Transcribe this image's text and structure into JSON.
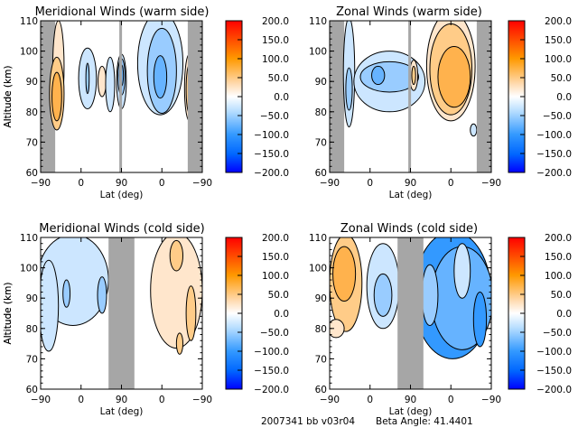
{
  "footer": {
    "run_id": "2007341 bb v03r04",
    "beta_label": "Beta Angle: 41.4401"
  },
  "colorbar": {
    "ticks": [
      "200.0",
      "150.0",
      "100.0",
      "50.0",
      "0.0",
      "−50.0",
      "−100.0",
      "−150.0",
      "−200.0"
    ],
    "range": [
      -200,
      200
    ],
    "colors": {
      "max": "#ff0000",
      "high": "#ff9900",
      "low_pos": "#ffe0c0",
      "zero": "#ffffff",
      "low_neg": "#bfe0ff",
      "mid_neg": "#3399ff",
      "min": "#0000ff"
    }
  },
  "colors": {
    "missing_gray": "#a6a6a6",
    "pos1": "#ffe6cc",
    "pos2": "#ffcc88",
    "pos3": "#ffb24d",
    "pos4": "#ff9a1a",
    "neg1": "#cce6ff",
    "neg2": "#99ccff",
    "neg3": "#66b3ff",
    "neg4": "#3399ff"
  },
  "chart_data": [
    {
      "type": "heatmap",
      "title": "Meridional Winds (warm side)",
      "xlabel": "Lat (deg)",
      "ylabel": "Altitude (km)",
      "xticks": [
        "−90",
        "0",
        "90",
        "0",
        "−90"
      ],
      "yticks": [
        "60",
        "70",
        "80",
        "90",
        "100",
        "110"
      ],
      "ylim": [
        60,
        110
      ],
      "zlim": [
        -200,
        200
      ],
      "features": [
        {
          "sign": "positive",
          "level": 2,
          "lat_range": "-90 to -75",
          "alt_range": [
            75,
            100
          ]
        },
        {
          "sign": "negative",
          "level": 1,
          "lat_range": "0 to 30",
          "alt_range": [
            83,
            103
          ]
        },
        {
          "sign": "positive",
          "level": 1,
          "lat_range": "35 to 50",
          "alt_range": [
            85,
            96
          ]
        },
        {
          "sign": "negative",
          "level": 2,
          "lat_range": "80 to 90",
          "alt_range": [
            86,
            101
          ]
        },
        {
          "sign": "negative",
          "level": 3,
          "lat_range": "30 to 0 (descending)",
          "alt_range": [
            75,
            110
          ]
        },
        {
          "sign": "positive",
          "level": 2,
          "lat_range": "-75 to -90 (descending)",
          "alt_range": [
            76,
            98
          ]
        }
      ]
    },
    {
      "type": "heatmap",
      "title": "Zonal Winds (warm side)",
      "xlabel": "Lat (deg)",
      "ylabel": "Altitude (km)",
      "xticks": [
        "−90",
        "0",
        "90",
        "0",
        "−90"
      ],
      "yticks": [
        "60",
        "70",
        "80",
        "90",
        "100",
        "110"
      ],
      "ylim": [
        60,
        110
      ],
      "zlim": [
        -200,
        200
      ],
      "features": [
        {
          "sign": "negative",
          "level": 2,
          "lat_range": "-90 to -75",
          "alt_range": [
            73,
            110
          ]
        },
        {
          "sign": "negative",
          "level": 2,
          "lat_range": "0 to 85",
          "alt_range": [
            83,
            102
          ]
        },
        {
          "sign": "positive",
          "level": 1,
          "lat_range": "85 to 90",
          "alt_range": [
            89,
            99
          ]
        },
        {
          "sign": "positive",
          "level": 3,
          "lat_range": "60 to -75 (descending)",
          "alt_range": [
            77,
            110
          ]
        },
        {
          "sign": "negative",
          "level": 1,
          "lat_range": "-80 to -90 (descending)",
          "alt_range": [
            73,
            76
          ]
        }
      ]
    },
    {
      "type": "heatmap",
      "title": "Meridional Winds (cold side)",
      "xlabel": "Lat (deg)",
      "ylabel": "Altitude (km)",
      "xticks": [
        "−90",
        "0",
        "90",
        "0",
        "−90"
      ],
      "yticks": [
        "60",
        "70",
        "80",
        "90",
        "100",
        "110"
      ],
      "ylim": [
        60,
        110
      ],
      "zlim": [
        -200,
        200
      ],
      "features": [
        {
          "sign": "negative",
          "level": 1,
          "lat_range": "-90 to 60",
          "alt_range": [
            78,
            110
          ]
        },
        {
          "sign": "negative",
          "level": 2,
          "lat_range": "-40 to -25",
          "alt_range": [
            88,
            96
          ]
        },
        {
          "sign": "negative",
          "level": 2,
          "lat_range": "40 to 60",
          "alt_range": [
            86,
            97
          ]
        },
        {
          "sign": "positive",
          "level": 1,
          "lat_range": "30 to -90 (descending)",
          "alt_range": [
            73,
            110
          ]
        },
        {
          "sign": "positive",
          "level": 2,
          "lat_range": "-60 to -75 (descending)",
          "alt_range": [
            77,
            97
          ]
        }
      ]
    },
    {
      "type": "heatmap",
      "title": "Zonal Winds (cold side)",
      "xlabel": "Lat (deg)",
      "ylabel": "Altitude (km)",
      "xticks": [
        "−90",
        "0",
        "90",
        "0",
        "−90"
      ],
      "yticks": [
        "60",
        "70",
        "80",
        "90",
        "100",
        "110"
      ],
      "ylim": [
        60,
        110
      ],
      "zlim": [
        -200,
        200
      ],
      "features": [
        {
          "sign": "positive",
          "level": 3,
          "lat_range": "-90 to -60",
          "alt_range": [
            77,
            110
          ]
        },
        {
          "sign": "negative",
          "level": 2,
          "lat_range": "-50 to -20",
          "alt_range": [
            83,
            107
          ]
        },
        {
          "sign": "negative",
          "level": 1,
          "lat_range": "10 to 25",
          "alt_range": [
            84,
            102
          ]
        },
        {
          "sign": "negative",
          "level": 4,
          "lat_range": "120 to -90 (descending)",
          "alt_range": [
            70,
            110
          ]
        }
      ]
    }
  ]
}
